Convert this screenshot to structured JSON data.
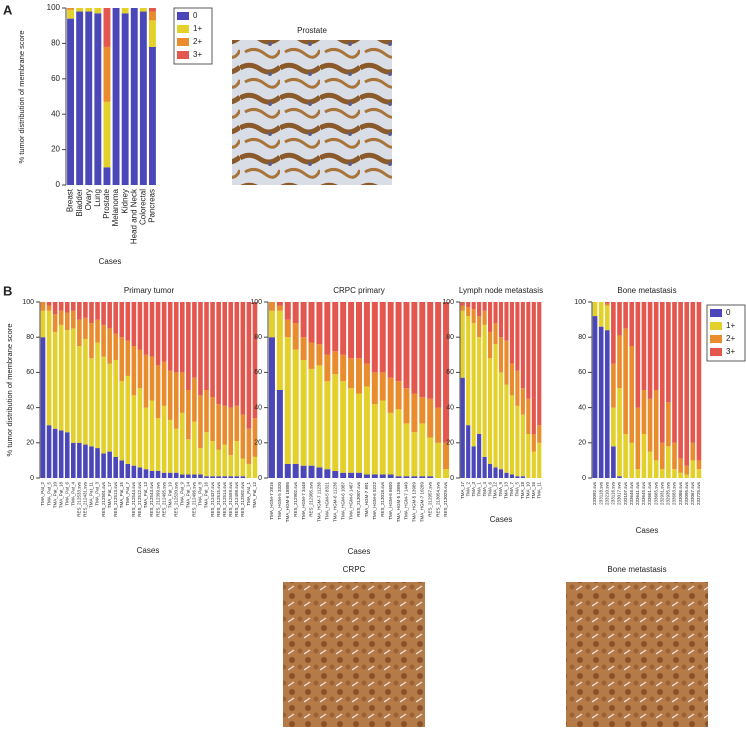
{
  "panels": [
    "A",
    "B"
  ],
  "images": [
    {
      "title": "Prostate"
    },
    {
      "title": "CRPC"
    },
    {
      "title": "Bone metastasis"
    }
  ],
  "chart_data": [
    {
      "type": "bar",
      "stacked": true,
      "ylabel": "% tumor distribution of membrane score",
      "xlabel": "Cases",
      "legend": "right",
      "categories": [
        "Breast",
        "Bladder",
        "Ovary",
        "Lung",
        "Prostate",
        "Melanoma",
        "Kidney",
        "Head and Neck",
        "Colorectal",
        "Pancreas"
      ],
      "series": [
        {
          "name": "0",
          "color": "#4b47b8",
          "values": [
            94,
            98,
            98,
            97,
            10,
            100,
            97,
            100,
            98,
            78
          ]
        },
        {
          "name": "1+",
          "color": "#e3d02b",
          "values": [
            5,
            2,
            2,
            3,
            37,
            0,
            3,
            0,
            2,
            15
          ]
        },
        {
          "name": "2+",
          "color": "#e88c2d",
          "values": [
            1,
            0,
            0,
            0,
            31,
            0,
            0,
            0,
            0,
            5
          ]
        },
        {
          "name": "3+",
          "color": "#e3574f",
          "values": [
            0,
            0,
            0,
            0,
            22,
            0,
            0,
            0,
            0,
            2
          ]
        }
      ],
      "ylim": [
        0,
        100
      ],
      "yticks": [
        0,
        20,
        40,
        60,
        80,
        100
      ]
    },
    {
      "type": "bar",
      "stacked": true,
      "title": "Primary tumor",
      "ylabel": "% tumor distribution of membrane score",
      "xlabel": "Cases",
      "categories": [
        "TMA_Pat_2",
        "TMA_Pat_5",
        "TMA_Pat_10",
        "TMA_Pat_18",
        "TMA_Pat_6",
        "TMA_Pat_4",
        "RES_212533.svs",
        "RES_212431.svs",
        "TMA_Pat_11",
        "TMA_Pat_3",
        "RES_212501.svs",
        "TMA_Pat_17",
        "RES_212513.svs",
        "TMA_Pat_15",
        "TMA_Pat_7",
        "RES_212544.svs",
        "RES_212512.svs",
        "TMA_Pat_13",
        "RES_212543.svs",
        "RES_212399.svs",
        "RES_212495.svs",
        "TMA_Pat_19",
        "RES_212520.svs",
        "TMA_Pat_9",
        "TMA_Pat_14",
        "RES_212496.svs",
        "TMA_Pat_8",
        "TMA_Pat_16",
        "RES_212437.svs",
        "RES_212515.svs",
        "RES_212514.svs",
        "RES_212559.svs",
        "RES_212498.svs",
        "RES_212502.svs",
        "TMA_Pat_1",
        "TMA_Pat_12"
      ],
      "series": [
        {
          "color": "#4b47b8",
          "values": [
            80,
            30,
            28,
            27,
            26,
            20,
            20,
            19,
            18,
            17,
            14,
            15,
            12,
            10,
            8,
            7,
            6,
            5,
            4,
            4,
            3,
            3,
            3,
            2,
            2,
            2,
            2,
            1,
            1,
            1,
            1,
            1,
            1,
            1,
            0,
            0
          ]
        },
        {
          "color": "#e3d02b",
          "values": [
            15,
            65,
            55,
            60,
            58,
            65,
            55,
            60,
            50,
            60,
            55,
            50,
            55,
            45,
            50,
            40,
            45,
            35,
            40,
            30,
            38,
            30,
            25,
            35,
            20,
            30,
            15,
            25,
            20,
            15,
            18,
            12,
            20,
            10,
            8,
            12
          ]
        },
        {
          "color": "#e88c2d",
          "values": [
            5,
            3,
            10,
            8,
            10,
            10,
            15,
            12,
            20,
            13,
            18,
            20,
            15,
            25,
            20,
            28,
            22,
            30,
            25,
            30,
            25,
            28,
            32,
            23,
            28,
            25,
            30,
            24,
            25,
            26,
            22,
            27,
            20,
            25,
            20,
            22
          ]
        },
        {
          "color": "#e3574f",
          "values": [
            0,
            2,
            7,
            5,
            6,
            5,
            10,
            9,
            12,
            10,
            13,
            15,
            18,
            20,
            22,
            25,
            27,
            30,
            31,
            36,
            34,
            39,
            40,
            40,
            50,
            43,
            53,
            50,
            54,
            58,
            59,
            60,
            59,
            64,
            72,
            66
          ]
        }
      ],
      "ylim": [
        0,
        100
      ],
      "yticks": [
        0,
        20,
        40,
        60,
        80,
        100
      ]
    },
    {
      "type": "bar",
      "stacked": true,
      "title": "CRPC primary",
      "xlabel": "Cases",
      "categories": [
        "TMA_HGM-7 2816",
        "TMA_HGM-5 3320",
        "TMA_HGM-6 18886",
        "RES_212902.svs",
        "TMA_HGM-7 3448",
        "RES_212905.svs",
        "TMA_HGM-7 11236",
        "TMA_HGM-5 8321",
        "TMA_HGM-6 11236",
        "TMA_HGM-6 1087",
        "TMA_HGM-6 1467",
        "RES_213007.svs",
        "TMA_HGM-7 891",
        "TMA_HGM-6 5222",
        "RES_213018.svs",
        "TMA_HGM-6 6650",
        "TMA_HGM-5 13896",
        "TMA_HGM-7 1449",
        "TMA_HGM-5 13989",
        "TMA_HGM-7 10289",
        "RES_212957.svs",
        "RES_213054.svs",
        "RES_213029.svs"
      ],
      "series": [
        {
          "color": "#4b47b8",
          "values": [
            80,
            50,
            8,
            8,
            7,
            7,
            6,
            5,
            4,
            3,
            3,
            3,
            2,
            2,
            2,
            2,
            1,
            1,
            1,
            1,
            1,
            0,
            0
          ]
        },
        {
          "color": "#e3d02b",
          "values": [
            15,
            45,
            72,
            65,
            60,
            55,
            58,
            50,
            55,
            52,
            48,
            45,
            50,
            40,
            42,
            35,
            38,
            30,
            25,
            30,
            22,
            20,
            5
          ]
        },
        {
          "color": "#e88c2d",
          "values": [
            5,
            3,
            10,
            15,
            13,
            15,
            12,
            15,
            13,
            15,
            17,
            20,
            13,
            18,
            16,
            20,
            16,
            20,
            22,
            15,
            22,
            20,
            15
          ]
        },
        {
          "color": "#e3574f",
          "values": [
            0,
            2,
            10,
            12,
            20,
            23,
            24,
            30,
            28,
            30,
            32,
            32,
            35,
            40,
            40,
            43,
            45,
            49,
            52,
            54,
            55,
            60,
            80
          ]
        }
      ],
      "ylim": [
        0,
        100
      ],
      "yticks": [
        0,
        20,
        40,
        60,
        80,
        100
      ]
    },
    {
      "type": "bar",
      "stacked": true,
      "title": "Lymph node metastasis",
      "xlabel": "Cases",
      "categories": [
        "TMA_17",
        "TMA_2",
        "TMA_3",
        "TMA_1",
        "TMA_4",
        "TMA_6",
        "TMA_12",
        "TMA_9",
        "TMA_13",
        "TMA_7",
        "TMA_5",
        "TMA_18",
        "TMA_10",
        "TMA_16",
        "TMA_11"
      ],
      "series": [
        {
          "color": "#4b47b8",
          "values": [
            57,
            30,
            18,
            25,
            12,
            8,
            6,
            5,
            3,
            2,
            1,
            1,
            0,
            0,
            0
          ]
        },
        {
          "color": "#e3d02b",
          "values": [
            38,
            62,
            70,
            55,
            75,
            60,
            70,
            55,
            50,
            45,
            40,
            35,
            25,
            15,
            20
          ]
        },
        {
          "color": "#e88c2d",
          "values": [
            3,
            5,
            8,
            12,
            8,
            15,
            12,
            20,
            25,
            18,
            20,
            15,
            20,
            10,
            10
          ]
        },
        {
          "color": "#e3574f",
          "values": [
            2,
            3,
            4,
            8,
            5,
            17,
            12,
            20,
            22,
            35,
            39,
            49,
            55,
            75,
            70
          ]
        }
      ],
      "ylim": [
        0,
        100
      ],
      "yticks": [
        0,
        20,
        40,
        60,
        80,
        100
      ]
    },
    {
      "type": "bar",
      "stacked": true,
      "title": "Bone metastasis",
      "xlabel": "Cases",
      "legend": "right",
      "categories": [
        "233092.svs",
        "233118.svs",
        "233210.svs",
        "233116.svs",
        "233017.svs",
        "233107.svs",
        "233646.svs",
        "233641.svs",
        "233645.svs",
        "233661.svs",
        "233665.svs",
        "232931.svs",
        "232935.svs",
        "233683.svs",
        "233086.svs",
        "233095.svs",
        "233067.svs",
        "233725.svs"
      ],
      "series": [
        {
          "name": "0",
          "color": "#4b47b8",
          "values": [
            92,
            86,
            84,
            18,
            1,
            0,
            0,
            0,
            0,
            0,
            0,
            0,
            0,
            0,
            0,
            0,
            0,
            0
          ]
        },
        {
          "name": "1+",
          "color": "#e3d02b",
          "values": [
            8,
            14,
            14,
            22,
            50,
            25,
            20,
            5,
            25,
            15,
            10,
            5,
            18,
            5,
            3,
            2,
            10,
            5
          ]
        },
        {
          "name": "2+",
          "color": "#e88c2d",
          "values": [
            0,
            0,
            1,
            25,
            30,
            60,
            55,
            35,
            25,
            30,
            40,
            15,
            25,
            15,
            8,
            5,
            10,
            5
          ]
        },
        {
          "name": "3+",
          "color": "#e3574f",
          "values": [
            0,
            0,
            1,
            35,
            19,
            15,
            25,
            60,
            50,
            55,
            50,
            80,
            57,
            80,
            89,
            93,
            80,
            90
          ]
        }
      ],
      "ylim": [
        0,
        100
      ],
      "yticks": [
        0,
        20,
        40,
        60,
        80,
        100
      ]
    }
  ]
}
